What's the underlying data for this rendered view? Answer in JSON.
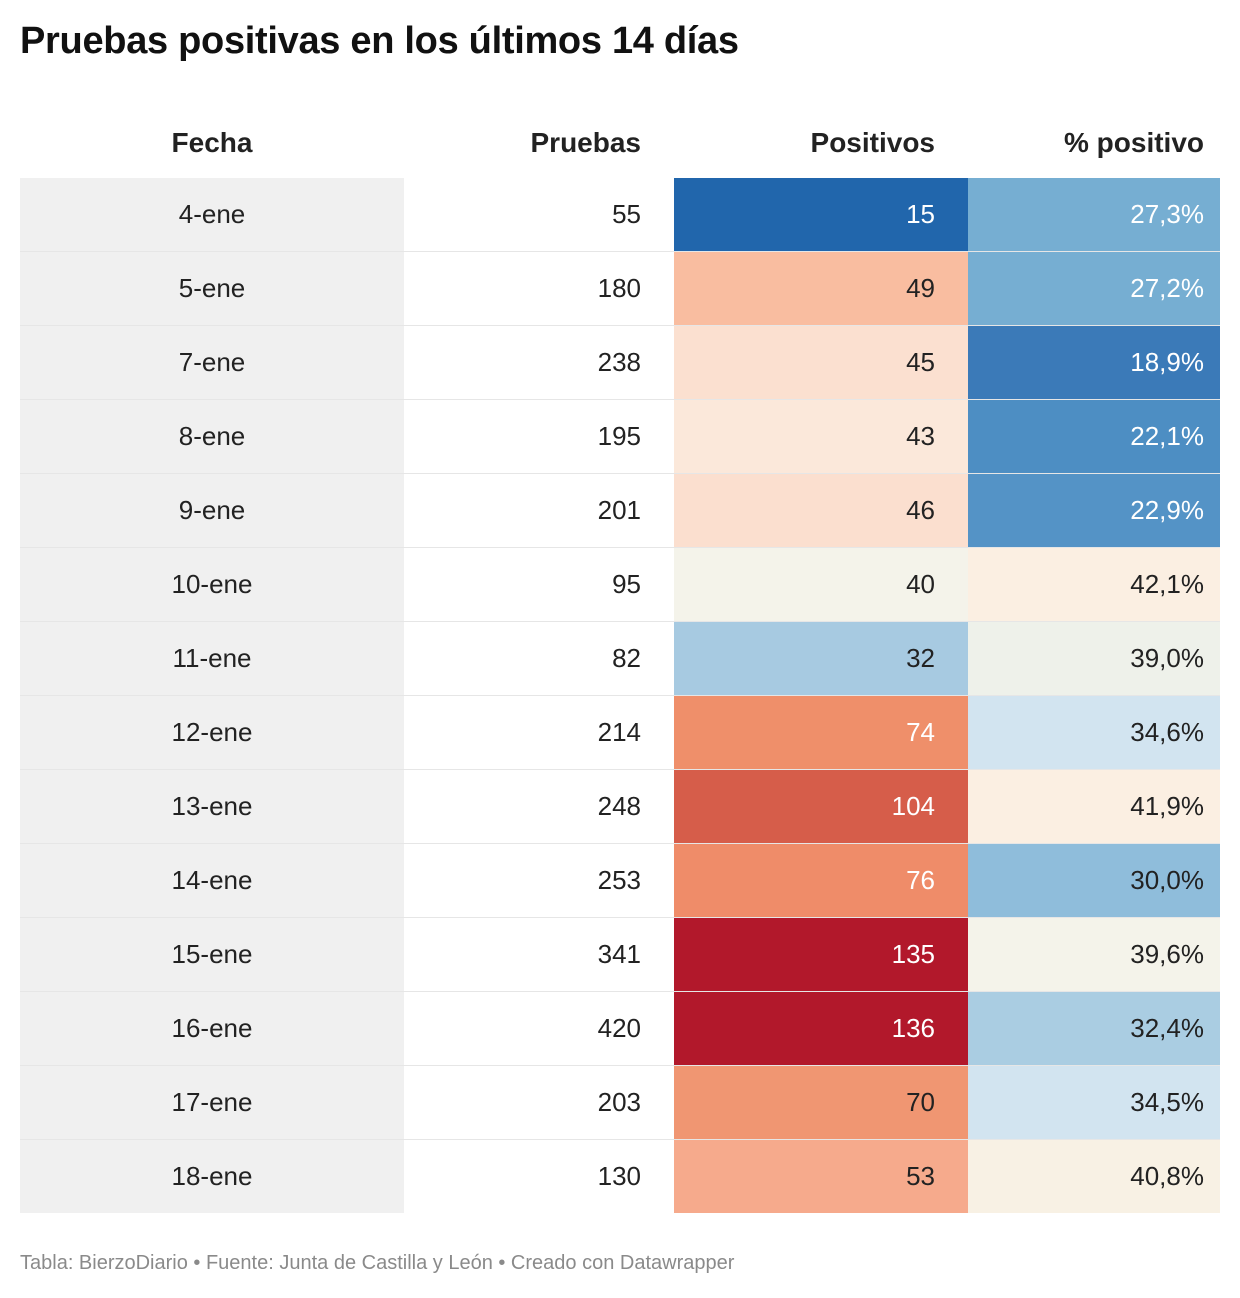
{
  "title": "Pruebas positivas en los últimos 14 días",
  "chart_data": {
    "type": "table",
    "columns": [
      "Fecha",
      "Pruebas",
      "Positivos",
      "% positivo"
    ],
    "rows": [
      [
        "4-ene",
        "55",
        "15",
        "27,3%"
      ],
      [
        "5-ene",
        "180",
        "49",
        "27,2%"
      ],
      [
        "7-ene",
        "238",
        "45",
        "18,9%"
      ],
      [
        "8-ene",
        "195",
        "43",
        "22,1%"
      ],
      [
        "9-ene",
        "201",
        "46",
        "22,9%"
      ],
      [
        "10-ene",
        "95",
        "40",
        "42,1%"
      ],
      [
        "11-ene",
        "82",
        "32",
        "39,0%"
      ],
      [
        "12-ene",
        "214",
        "74",
        "34,6%"
      ],
      [
        "13-ene",
        "248",
        "104",
        "41,9%"
      ],
      [
        "14-ene",
        "253",
        "76",
        "30,0%"
      ],
      [
        "15-ene",
        "341",
        "135",
        "39,6%"
      ],
      [
        "16-ene",
        "420",
        "136",
        "32,4%"
      ],
      [
        "17-ene",
        "203",
        "70",
        "34,5%"
      ],
      [
        "18-ene",
        "130",
        "53",
        "40,8%"
      ]
    ],
    "positivos_colors": [
      "#2166ac",
      "#f9bda0",
      "#fbe0d0",
      "#fbe8da",
      "#fbdfcf",
      "#f4f3ea",
      "#a7cae1",
      "#ef8f6a",
      "#d65d4a",
      "#ef8c69",
      "#b2182b",
      "#b2182b",
      "#f09672",
      "#f6aa8c"
    ],
    "positivos_text_colors": [
      "#ffffff",
      "#222222",
      "#222222",
      "#222222",
      "#222222",
      "#222222",
      "#222222",
      "#ffffff",
      "#ffffff",
      "#ffffff",
      "#ffffff",
      "#ffffff",
      "#222222",
      "#222222"
    ],
    "pct_colors": [
      "#76aed2",
      "#76aed2",
      "#3b7ab8",
      "#4d8ec3",
      "#5493c6",
      "#fbefe2",
      "#eef1ea",
      "#d2e4f0",
      "#fbefe2",
      "#8fbddb",
      "#f4f3ea",
      "#aacde2",
      "#d2e4f0",
      "#f8f1e4"
    ],
    "pct_text_colors": [
      "#ffffff",
      "#ffffff",
      "#ffffff",
      "#ffffff",
      "#ffffff",
      "#222222",
      "#222222",
      "#222222",
      "#222222",
      "#222222",
      "#222222",
      "#222222",
      "#222222",
      "#222222"
    ]
  },
  "footer": "Tabla: BierzoDiario • Fuente: Junta de Castilla y León • Creado con Datawrapper"
}
